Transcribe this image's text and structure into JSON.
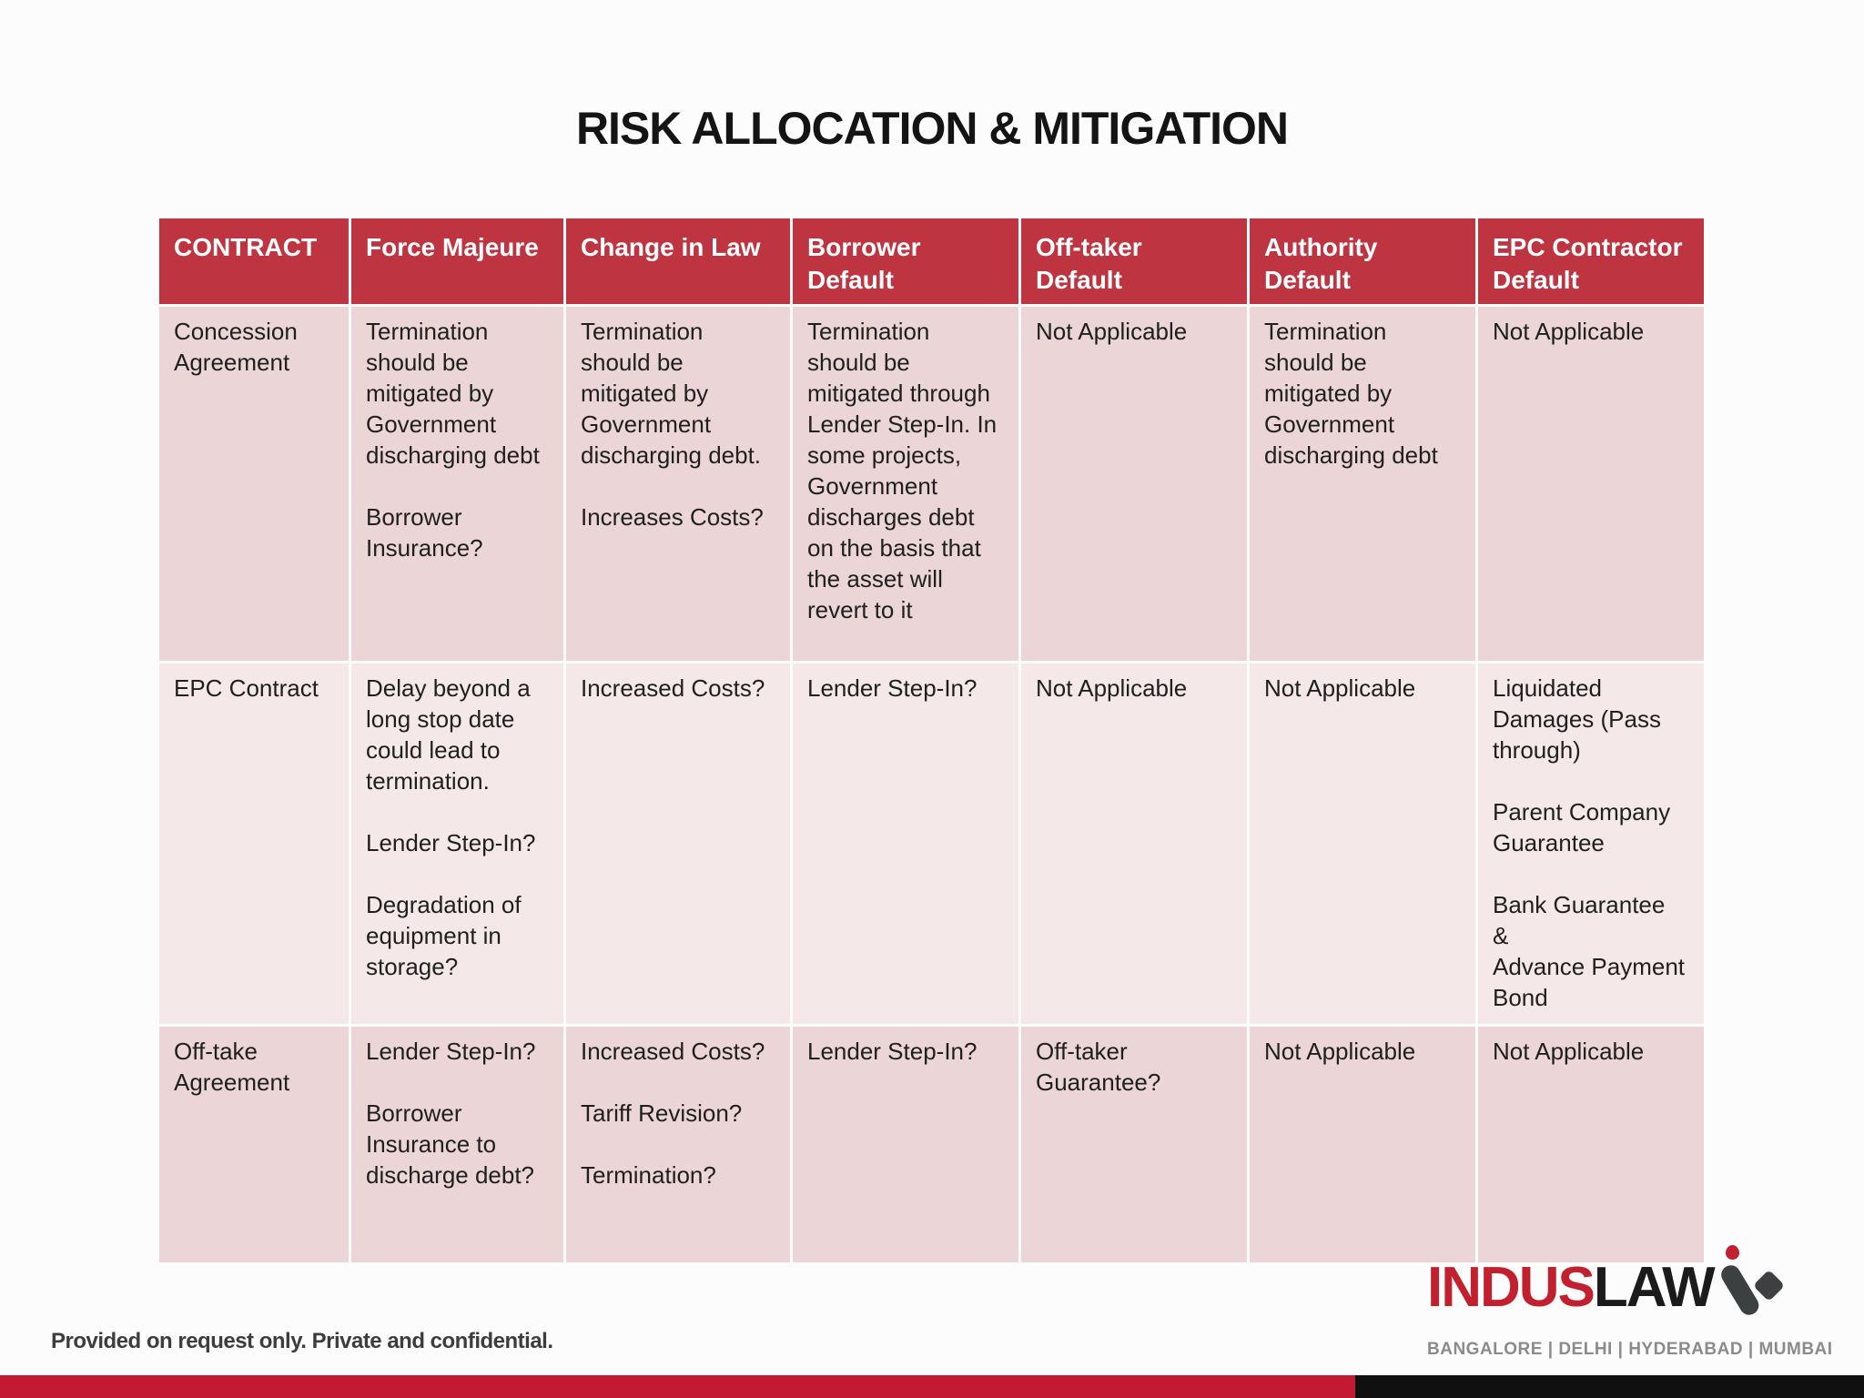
{
  "slide": {
    "title": "RISK ALLOCATION & MITIGATION",
    "footer_note": "Provided on request only. Private and confidential."
  },
  "logo": {
    "part1": "INDUS",
    "part2": "LAW",
    "cities": "BANGALORE   |   DELHI   |   HYDERABAD   |   MUMBAI"
  },
  "colors": {
    "header_bg": "#be3440",
    "row_pink": "#ebd5d6",
    "row_light": "#f4e9e8",
    "bottom_bar_red": "#c41932",
    "bottom_bar_black": "#101010",
    "logo_red": "#c2202f"
  },
  "table": {
    "columns": [
      "CONTRACT",
      "Force Majeure",
      "Change in Law",
      "Borrower Default",
      "Off-taker Default",
      "Authority Default",
      "EPC Contractor Default"
    ],
    "rows": [
      {
        "cells": [
          "Concession Agreement",
          "Termination should be mitigated by Government discharging debt\n\nBorrower Insurance?",
          "Termination should be mitigated by Government discharging debt.\n\nIncreases Costs?",
          "Termination should be mitigated through Lender Step-In. In some projects, Government discharges debt on the basis that the asset will revert to it",
          "Not Applicable",
          "Termination should be mitigated by Government discharging debt",
          "Not Applicable"
        ]
      },
      {
        "cells": [
          "EPC Contract",
          "Delay beyond a long stop date could lead to termination.\n\nLender Step-In?\n\nDegradation of equipment in storage?",
          "Increased Costs?",
          "Lender Step-In?",
          "Not Applicable",
          "Not Applicable",
          "Liquidated Damages (Pass through)\n\nParent Company Guarantee\n\nBank Guarantee\n&\nAdvance Payment Bond"
        ]
      },
      {
        "cells": [
          "Off-take Agreement",
          "Lender Step-In?\n\nBorrower Insurance to discharge debt?",
          "Increased Costs?\n\nTariff Revision?\n\nTermination?",
          "Lender Step-In?",
          "Off-taker Guarantee?",
          "Not Applicable",
          "Not Applicable"
        ]
      }
    ]
  }
}
